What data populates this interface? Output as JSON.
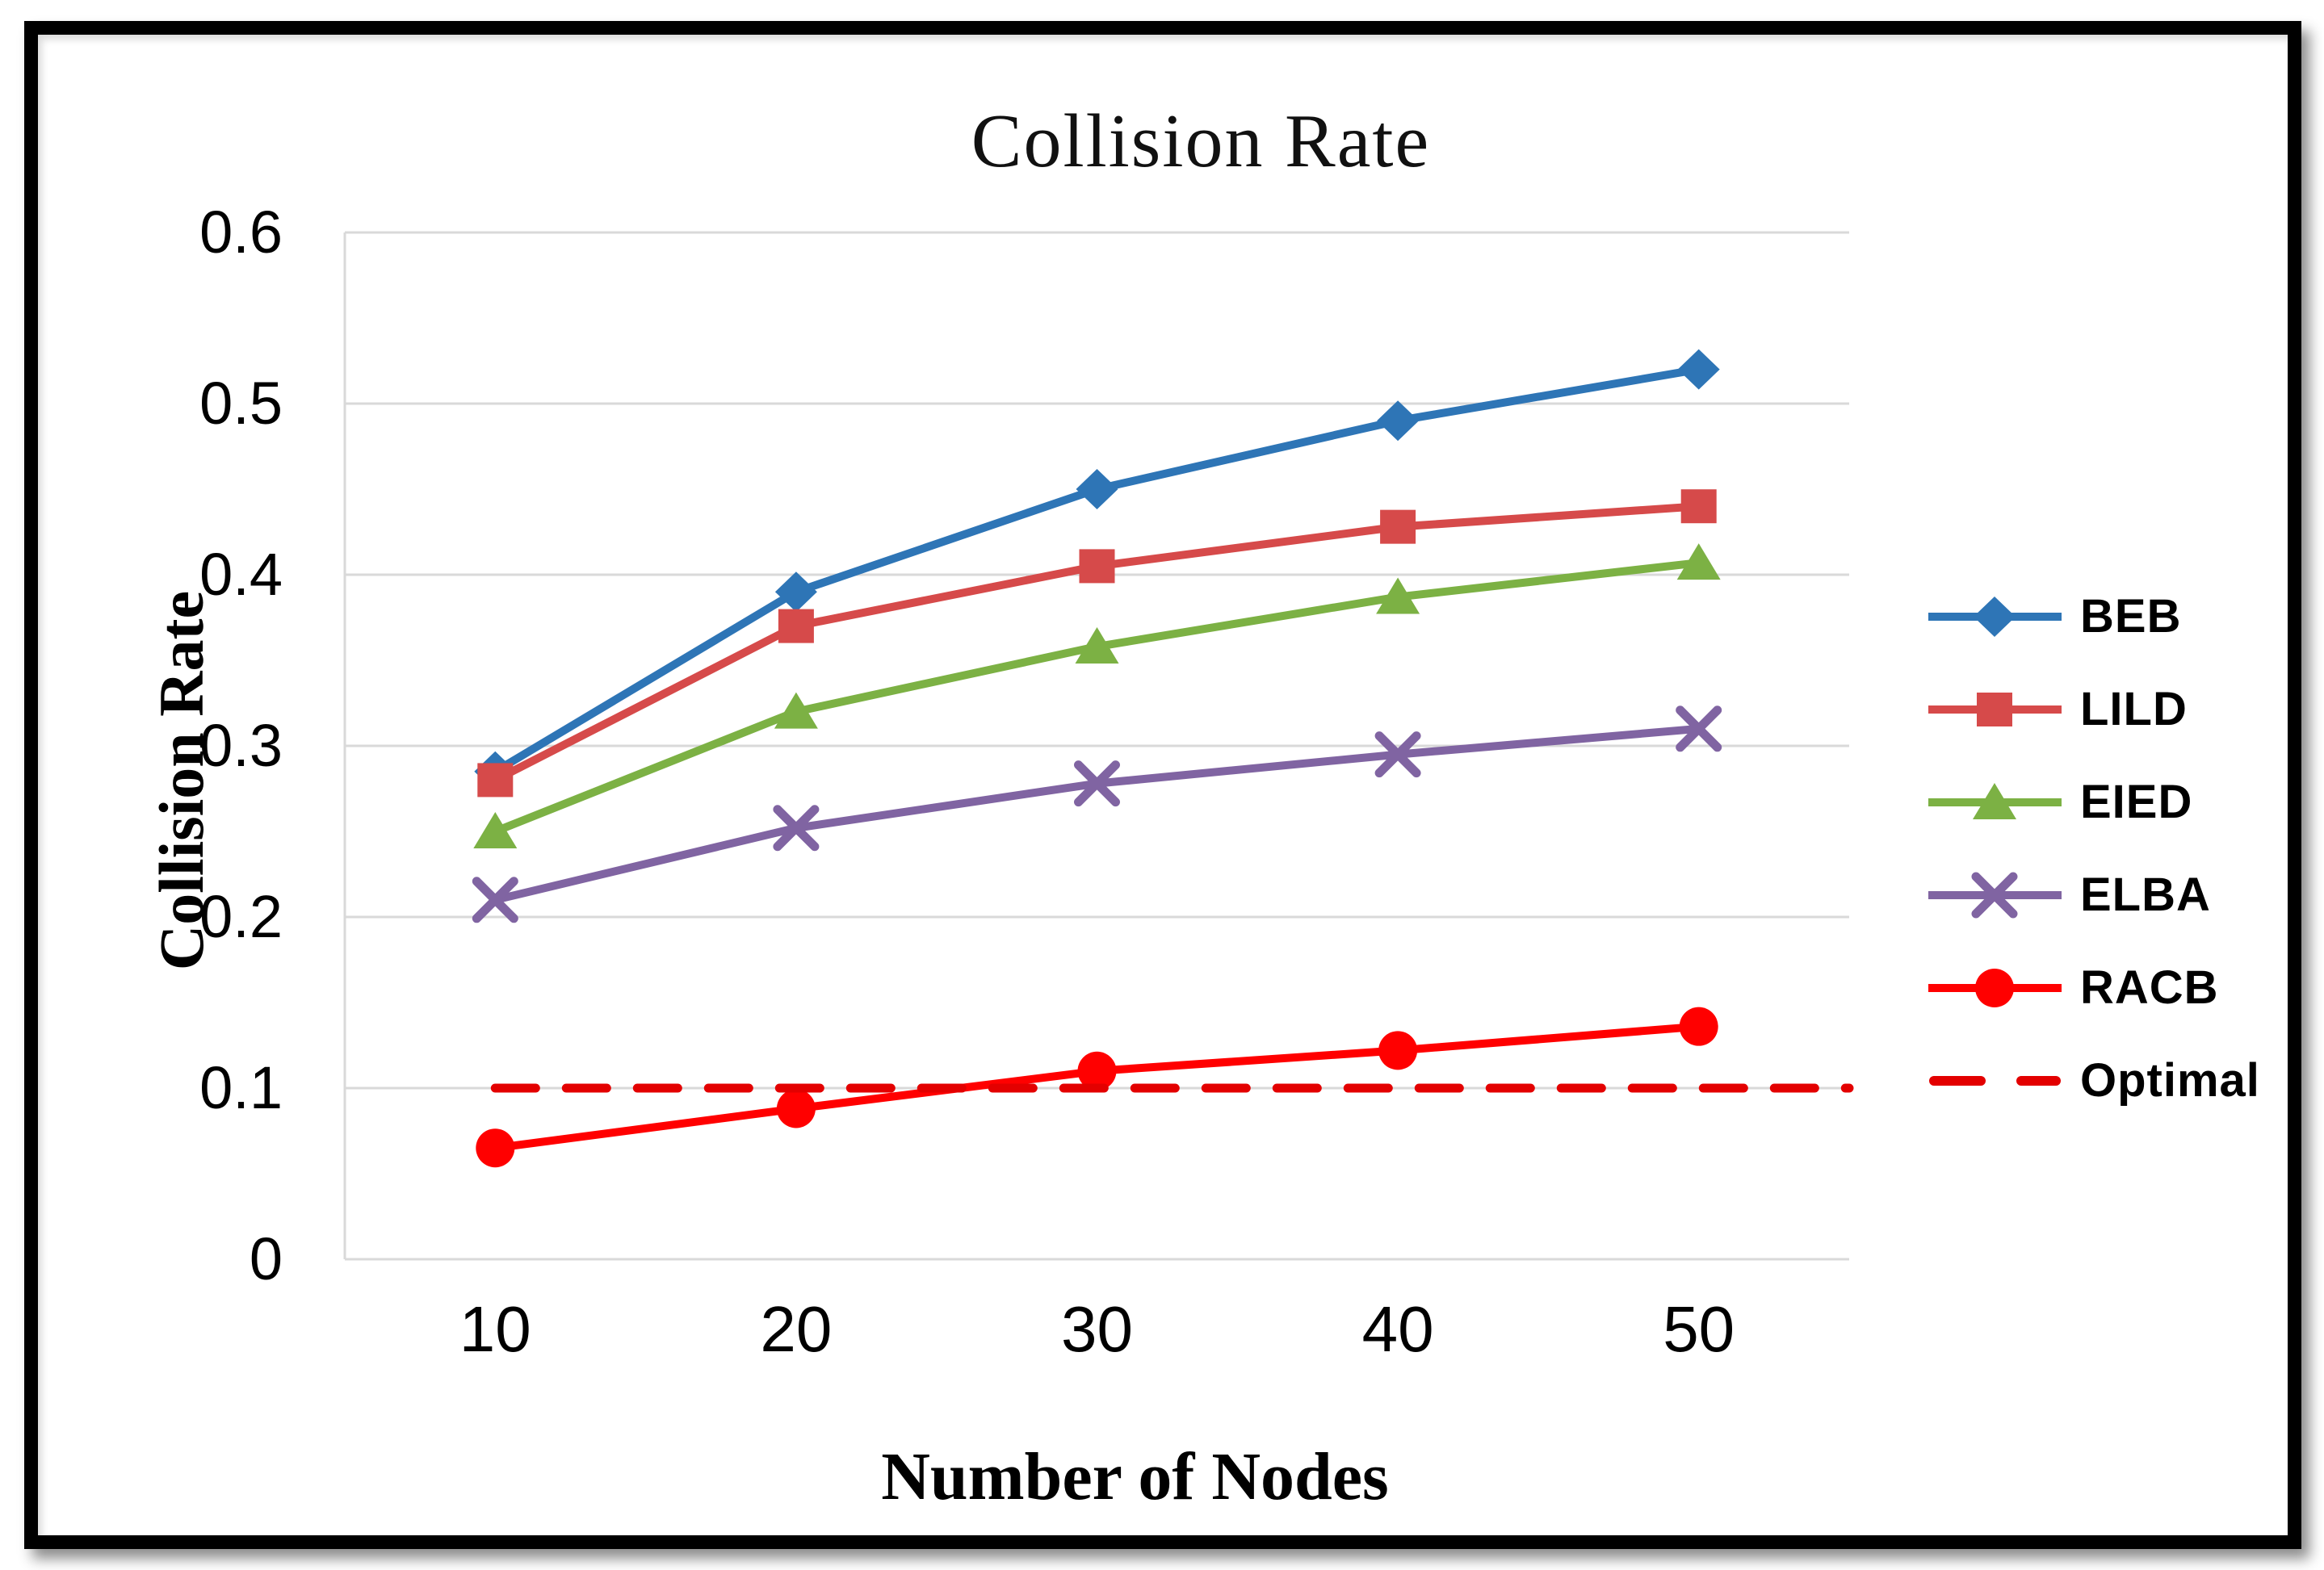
{
  "chart_data": {
    "type": "line",
    "title": "Collision Rate",
    "xlabel": "Number of Nodes",
    "ylabel": "Collision Rate",
    "categories": [
      "10",
      "20",
      "30",
      "40",
      "50"
    ],
    "ylim": [
      0,
      0.6
    ],
    "ytick_step": 0.1,
    "ytick_labels": [
      "0",
      "0.1",
      "0.2",
      "0.3",
      "0.4",
      "0.5",
      "0.6"
    ],
    "grid": true,
    "grid_color": "#d9d9d9",
    "legend_position": "right",
    "series": [
      {
        "name": "BEB",
        "color": "#2E75B6",
        "marker": "diamond",
        "dash": false,
        "values": [
          0.285,
          0.39,
          0.45,
          0.49,
          0.52
        ]
      },
      {
        "name": "LILD",
        "color": "#D64A4A",
        "marker": "square",
        "dash": false,
        "values": [
          0.28,
          0.37,
          0.405,
          0.428,
          0.44
        ]
      },
      {
        "name": "EIED",
        "color": "#7CB144",
        "marker": "triangle",
        "dash": false,
        "values": [
          0.25,
          0.32,
          0.358,
          0.387,
          0.407
        ]
      },
      {
        "name": "ELBA",
        "color": "#8064A2",
        "marker": "x",
        "dash": false,
        "values": [
          0.21,
          0.252,
          0.278,
          0.295,
          0.31
        ]
      },
      {
        "name": "RACB",
        "color": "#FF0000",
        "marker": "circle",
        "dash": false,
        "values": [
          0.065,
          0.088,
          0.11,
          0.122,
          0.136
        ]
      },
      {
        "name": "Optimal",
        "color": "#E30000",
        "marker": "none",
        "dash": true,
        "values": [
          0.1,
          0.1,
          0.1,
          0.1,
          0.1
        ]
      }
    ]
  }
}
